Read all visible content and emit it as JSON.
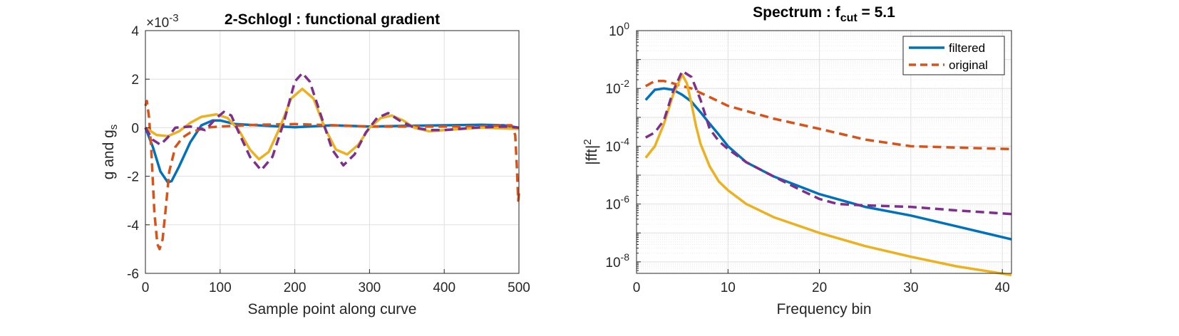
{
  "chart_data": [
    {
      "type": "line",
      "title": "2-Schlogl : functional gradient",
      "xlabel": "Sample point along curve",
      "ylabel": "g and g",
      "ylabel_sub": "s",
      "exponent_label": "×10",
      "exponent_power": "-3",
      "xlim": [
        0,
        500
      ],
      "ylim": [
        -6,
        4
      ],
      "xticks": [
        "0",
        "100",
        "200",
        "300",
        "400",
        "500"
      ],
      "yticks": [
        "-6",
        "-4",
        "-2",
        "0",
        "2",
        "4"
      ],
      "grid": true,
      "series": [
        {
          "color": "#0072BD",
          "dash": "solid",
          "x": [
            0,
            10,
            20,
            30,
            35,
            45,
            60,
            75,
            90,
            100,
            120,
            150,
            200,
            250,
            300,
            350,
            400,
            450,
            480,
            500
          ],
          "y": [
            0,
            -0.8,
            -1.8,
            -2.25,
            -2.2,
            -1.6,
            -0.6,
            0.1,
            0.3,
            0.3,
            0.15,
            0.1,
            0.02,
            0.1,
            0.05,
            0.08,
            0.1,
            0.12,
            0.1,
            0
          ]
        },
        {
          "color": "#D95319",
          "dash": "dashed",
          "x": [
            0,
            2,
            5,
            8,
            12,
            16,
            19,
            23,
            27,
            32,
            40,
            50,
            60,
            80,
            100,
            150,
            200,
            250,
            300,
            350,
            400,
            450,
            480,
            490,
            495,
            497,
            499,
            500
          ],
          "y": [
            0.9,
            1.1,
            0.4,
            -1.0,
            -3.5,
            -4.8,
            -5.0,
            -4.6,
            -3.4,
            -1.8,
            -0.8,
            -0.4,
            -0.2,
            0.0,
            0.05,
            0.12,
            0.15,
            0.1,
            0.05,
            0.05,
            0.05,
            0.05,
            0.1,
            0.1,
            -0.3,
            -1.5,
            -3.0,
            -2.7
          ]
        },
        {
          "color": "#EDB120",
          "dash": "solid",
          "x": [
            0,
            15,
            30,
            45,
            60,
            75,
            95,
            110,
            125,
            140,
            152,
            165,
            180,
            195,
            210,
            225,
            240,
            255,
            270,
            285,
            300,
            315,
            330,
            345,
            360,
            380,
            400,
            450,
            500
          ],
          "y": [
            0,
            -0.3,
            -0.35,
            -0.15,
            0.2,
            0.45,
            0.55,
            0.4,
            -0.1,
            -0.9,
            -1.3,
            -1.0,
            0.0,
            1.2,
            1.6,
            1.2,
            0.0,
            -0.9,
            -1.1,
            -0.7,
            0.0,
            0.4,
            0.5,
            0.3,
            0.0,
            -0.15,
            -0.1,
            0.0,
            -0.05
          ]
        },
        {
          "color": "#7E2F8E",
          "dash": "dashed",
          "x": [
            0,
            10,
            20,
            30,
            40,
            60,
            80,
            95,
            105,
            115,
            125,
            140,
            155,
            170,
            185,
            200,
            210,
            220,
            235,
            250,
            265,
            280,
            295,
            310,
            325,
            340,
            360,
            380,
            400,
            440,
            480,
            500
          ],
          "y": [
            0,
            -0.5,
            -0.7,
            -0.4,
            0.0,
            0.05,
            -0.1,
            0.4,
            0.65,
            0.5,
            -0.2,
            -1.2,
            -1.75,
            -1.2,
            0.2,
            1.9,
            2.25,
            1.9,
            0.5,
            -0.9,
            -1.55,
            -1.1,
            -0.2,
            0.4,
            0.6,
            0.3,
            0.0,
            -0.1,
            -0.1,
            0.0,
            0.05,
            0.0
          ]
        }
      ]
    },
    {
      "type": "line",
      "title": "Spectrum : f",
      "title_sub": "cut",
      "title_suffix": " = 5.1",
      "xlabel": "Frequency bin",
      "ylabel": "|fft|",
      "ylabel_sup": "2",
      "yscale": "log",
      "xlim": [
        0,
        41
      ],
      "ylim": [
        4e-09,
        1
      ],
      "xticks": [
        "0",
        "10",
        "20",
        "30",
        "40"
      ],
      "yticks": [
        {
          "base": "10",
          "exp": "0"
        },
        {
          "base": "10",
          "exp": "-2"
        },
        {
          "base": "10",
          "exp": "-4"
        },
        {
          "base": "10",
          "exp": "-6"
        },
        {
          "base": "10",
          "exp": "-8"
        }
      ],
      "grid": true,
      "legend_position": "top-right",
      "legend": [
        {
          "label": "filtered",
          "color": "#0072BD",
          "dash": "solid"
        },
        {
          "label": "original",
          "color": "#D95319",
          "dash": "dashed"
        }
      ],
      "series": [
        {
          "color": "#0072BD",
          "dash": "solid",
          "x": [
            1,
            2,
            3,
            4,
            5,
            6,
            7,
            8,
            9,
            10,
            12,
            15,
            20,
            25,
            30,
            35,
            41
          ],
          "y": [
            0.004,
            0.009,
            0.01,
            0.009,
            0.006,
            0.0035,
            0.0015,
            0.0006,
            0.00025,
            0.0001,
            2.8e-05,
            9e-06,
            2.2e-06,
            8e-07,
            4e-07,
            1.7e-07,
            6e-08
          ]
        },
        {
          "color": "#D95319",
          "dash": "dashed",
          "x": [
            1,
            2,
            3,
            4,
            5,
            6,
            7,
            8,
            10,
            15,
            20,
            25,
            30,
            35,
            41
          ],
          "y": [
            0.012,
            0.018,
            0.018,
            0.015,
            0.012,
            0.01,
            0.007,
            0.005,
            0.0025,
            0.0009,
            0.0004,
            0.00017,
            0.0001,
            9e-05,
            8e-05
          ]
        },
        {
          "color": "#EDB120",
          "dash": "solid",
          "x": [
            1,
            2,
            3,
            4,
            5,
            5.5,
            6,
            6.5,
            7,
            8,
            9,
            10,
            12,
            15,
            20,
            25,
            30,
            35,
            41
          ],
          "y": [
            4e-05,
            0.0001,
            0.0006,
            0.006,
            0.03,
            0.015,
            0.003,
            0.0005,
            0.00012,
            2e-05,
            6e-06,
            3e-06,
            1e-06,
            3.5e-07,
            1e-07,
            3.5e-08,
            1.5e-08,
            7e-09,
            3.5e-09
          ]
        },
        {
          "color": "#7E2F8E",
          "dash": "dashed",
          "x": [
            1,
            2,
            3,
            4,
            5,
            6,
            7,
            8,
            9,
            10,
            12,
            15,
            18,
            20,
            22,
            25,
            30,
            35,
            41
          ],
          "y": [
            0.0002,
            0.0003,
            0.0008,
            0.008,
            0.04,
            0.025,
            0.004,
            0.0004,
            0.00015,
            8e-05,
            2.8e-05,
            9e-06,
            3e-06,
            1.5e-06,
            1e-06,
            9e-07,
            8e-07,
            6e-07,
            4.5e-07
          ]
        }
      ]
    }
  ]
}
